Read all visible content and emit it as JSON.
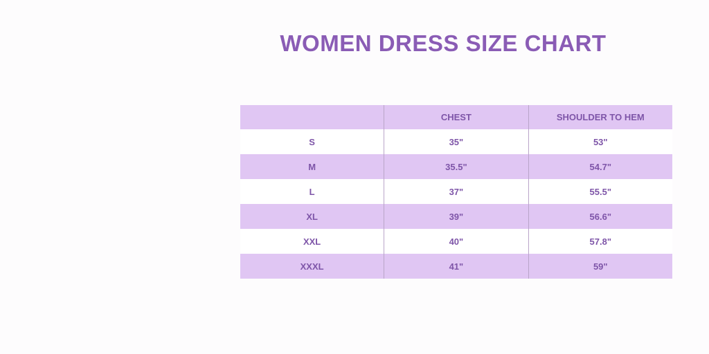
{
  "title": "WOMEN DRESS SIZE CHART",
  "table": {
    "headers": [
      "",
      "CHEST",
      "SHOULDER TO HEM"
    ],
    "rows": [
      [
        "S",
        "35\"",
        "53\""
      ],
      [
        "M",
        "35.5\"",
        "54.7\""
      ],
      [
        "L",
        "37\"",
        "55.5\""
      ],
      [
        "XL",
        "39\"",
        "56.6\""
      ],
      [
        "XXL",
        "40\"",
        "57.8\""
      ],
      [
        "XXXL",
        "41\"",
        "59\""
      ]
    ]
  },
  "colors": {
    "accent": "#8a5cb5",
    "row_shade": "#e0c6f3",
    "text": "#7e55a8"
  }
}
